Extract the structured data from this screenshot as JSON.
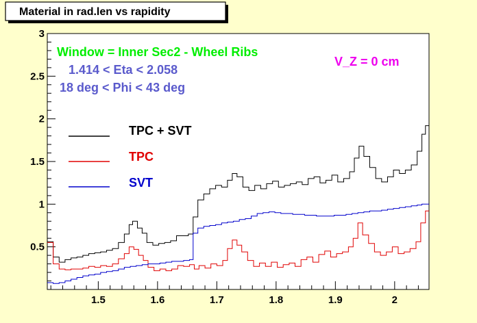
{
  "colors": {
    "canvas_bg": "#ffffcc",
    "frame": "#000000",
    "total": "#000000",
    "tpc": "#e00000",
    "svt": "#0000cc",
    "window_text": "#00ee00",
    "eta_phi_text": "#5a5acc",
    "vz_text": "#ee00ee"
  },
  "annotations": {
    "window": "Window = Inner Sec2 - Wheel Ribs",
    "eta": "1.414 < Eta < 2.058",
    "phi": "18 deg < Phi < 43 deg",
    "vz": "V_Z = 0 cm"
  },
  "chart_data": {
    "type": "line",
    "title": "Material in rad.len vs rapidity",
    "xlabel": "",
    "ylabel": "",
    "xlim": [
      1.414,
      2.058
    ],
    "ylim": [
      0,
      3
    ],
    "grid": false,
    "legend_position": "left",
    "x_ticks": [
      {
        "v": 1.5,
        "label": "1.5"
      },
      {
        "v": 1.6,
        "label": "1.6"
      },
      {
        "v": 1.7,
        "label": "1.7"
      },
      {
        "v": 1.8,
        "label": "1.8"
      },
      {
        "v": 1.9,
        "label": "1.9"
      },
      {
        "v": 2.0,
        "label": "2"
      }
    ],
    "y_ticks": [
      {
        "v": 0.5,
        "label": "0.5"
      },
      {
        "v": 1.0,
        "label": "1"
      },
      {
        "v": 1.5,
        "label": "1.5"
      },
      {
        "v": 2.0,
        "label": "2"
      },
      {
        "v": 2.5,
        "label": "2.5"
      },
      {
        "v": 3.0,
        "label": "3"
      }
    ],
    "draw_style": "histogram-steps",
    "series": [
      {
        "name": "TPC + SVT",
        "color_key": "total",
        "points": [
          [
            1.414,
            0.56
          ],
          [
            1.424,
            0.38
          ],
          [
            1.434,
            0.32
          ],
          [
            1.444,
            0.35
          ],
          [
            1.454,
            0.37
          ],
          [
            1.464,
            0.38
          ],
          [
            1.474,
            0.4
          ],
          [
            1.484,
            0.42
          ],
          [
            1.494,
            0.43
          ],
          [
            1.504,
            0.44
          ],
          [
            1.514,
            0.46
          ],
          [
            1.524,
            0.48
          ],
          [
            1.534,
            0.55
          ],
          [
            1.544,
            0.65
          ],
          [
            1.552,
            0.76
          ],
          [
            1.558,
            0.8
          ],
          [
            1.566,
            0.72
          ],
          [
            1.574,
            0.66
          ],
          [
            1.582,
            0.55
          ],
          [
            1.592,
            0.52
          ],
          [
            1.602,
            0.54
          ],
          [
            1.612,
            0.55
          ],
          [
            1.622,
            0.57
          ],
          [
            1.632,
            0.63
          ],
          [
            1.642,
            0.63
          ],
          [
            1.652,
            0.65
          ],
          [
            1.66,
            0.85
          ],
          [
            1.668,
            1.05
          ],
          [
            1.678,
            1.12
          ],
          [
            1.688,
            1.18
          ],
          [
            1.698,
            1.22
          ],
          [
            1.708,
            1.2
          ],
          [
            1.718,
            1.28
          ],
          [
            1.726,
            1.36
          ],
          [
            1.734,
            1.32
          ],
          [
            1.744,
            1.2
          ],
          [
            1.754,
            1.16
          ],
          [
            1.764,
            1.22
          ],
          [
            1.774,
            1.18
          ],
          [
            1.784,
            1.24
          ],
          [
            1.794,
            1.27
          ],
          [
            1.804,
            1.2
          ],
          [
            1.814,
            1.22
          ],
          [
            1.824,
            1.24
          ],
          [
            1.834,
            1.26
          ],
          [
            1.844,
            1.23
          ],
          [
            1.854,
            1.3
          ],
          [
            1.864,
            1.32
          ],
          [
            1.874,
            1.25
          ],
          [
            1.884,
            1.28
          ],
          [
            1.894,
            1.34
          ],
          [
            1.904,
            1.26
          ],
          [
            1.914,
            1.3
          ],
          [
            1.924,
            1.38
          ],
          [
            1.932,
            1.54
          ],
          [
            1.94,
            1.68
          ],
          [
            1.948,
            1.56
          ],
          [
            1.958,
            1.43
          ],
          [
            1.968,
            1.3
          ],
          [
            1.978,
            1.26
          ],
          [
            1.988,
            1.32
          ],
          [
            1.998,
            1.4
          ],
          [
            2.008,
            1.36
          ],
          [
            2.018,
            1.4
          ],
          [
            2.028,
            1.46
          ],
          [
            2.038,
            1.62
          ],
          [
            2.046,
            1.82
          ],
          [
            2.052,
            1.92
          ]
        ]
      },
      {
        "name": "TPC",
        "color_key": "tpc",
        "points": [
          [
            1.414,
            0.55
          ],
          [
            1.424,
            0.3
          ],
          [
            1.434,
            0.24
          ],
          [
            1.444,
            0.23
          ],
          [
            1.454,
            0.24
          ],
          [
            1.464,
            0.24
          ],
          [
            1.474,
            0.25
          ],
          [
            1.484,
            0.27
          ],
          [
            1.494,
            0.26
          ],
          [
            1.504,
            0.28
          ],
          [
            1.514,
            0.27
          ],
          [
            1.524,
            0.3
          ],
          [
            1.534,
            0.36
          ],
          [
            1.544,
            0.42
          ],
          [
            1.552,
            0.5
          ],
          [
            1.56,
            0.47
          ],
          [
            1.568,
            0.4
          ],
          [
            1.576,
            0.34
          ],
          [
            1.584,
            0.26
          ],
          [
            1.594,
            0.22
          ],
          [
            1.604,
            0.24
          ],
          [
            1.614,
            0.22
          ],
          [
            1.624,
            0.24
          ],
          [
            1.634,
            0.28
          ],
          [
            1.644,
            0.27
          ],
          [
            1.654,
            0.29
          ],
          [
            1.662,
            0.24
          ],
          [
            1.67,
            0.28
          ],
          [
            1.68,
            0.25
          ],
          [
            1.69,
            0.3
          ],
          [
            1.7,
            0.28
          ],
          [
            1.71,
            0.34
          ],
          [
            1.718,
            0.48
          ],
          [
            1.726,
            0.58
          ],
          [
            1.734,
            0.52
          ],
          [
            1.742,
            0.44
          ],
          [
            1.752,
            0.34
          ],
          [
            1.762,
            0.27
          ],
          [
            1.772,
            0.31
          ],
          [
            1.782,
            0.27
          ],
          [
            1.792,
            0.32
          ],
          [
            1.802,
            0.26
          ],
          [
            1.812,
            0.29
          ],
          [
            1.822,
            0.31
          ],
          [
            1.832,
            0.27
          ],
          [
            1.842,
            0.35
          ],
          [
            1.852,
            0.38
          ],
          [
            1.862,
            0.32
          ],
          [
            1.872,
            0.41
          ],
          [
            1.882,
            0.45
          ],
          [
            1.892,
            0.38
          ],
          [
            1.902,
            0.42
          ],
          [
            1.912,
            0.44
          ],
          [
            1.922,
            0.5
          ],
          [
            1.93,
            0.6
          ],
          [
            1.938,
            0.78
          ],
          [
            1.946,
            0.64
          ],
          [
            1.956,
            0.54
          ],
          [
            1.966,
            0.44
          ],
          [
            1.976,
            0.4
          ],
          [
            1.986,
            0.44
          ],
          [
            1.996,
            0.5
          ],
          [
            2.006,
            0.42
          ],
          [
            2.016,
            0.44
          ],
          [
            2.026,
            0.48
          ],
          [
            2.036,
            0.56
          ],
          [
            2.044,
            0.78
          ],
          [
            2.052,
            0.92
          ]
        ]
      },
      {
        "name": "SVT",
        "color_key": "svt",
        "points": [
          [
            1.414,
            0.08
          ],
          [
            1.424,
            0.07
          ],
          [
            1.434,
            0.08
          ],
          [
            1.444,
            0.1
          ],
          [
            1.454,
            0.12
          ],
          [
            1.464,
            0.14
          ],
          [
            1.474,
            0.16
          ],
          [
            1.484,
            0.17
          ],
          [
            1.494,
            0.18
          ],
          [
            1.504,
            0.2
          ],
          [
            1.514,
            0.21
          ],
          [
            1.524,
            0.22
          ],
          [
            1.534,
            0.24
          ],
          [
            1.544,
            0.26
          ],
          [
            1.554,
            0.27
          ],
          [
            1.564,
            0.28
          ],
          [
            1.574,
            0.29
          ],
          [
            1.584,
            0.3
          ],
          [
            1.594,
            0.3
          ],
          [
            1.604,
            0.31
          ],
          [
            1.614,
            0.32
          ],
          [
            1.624,
            0.33
          ],
          [
            1.634,
            0.33
          ],
          [
            1.644,
            0.34
          ],
          [
            1.654,
            0.35
          ],
          [
            1.66,
            0.66
          ],
          [
            1.668,
            0.72
          ],
          [
            1.678,
            0.74
          ],
          [
            1.688,
            0.75
          ],
          [
            1.698,
            0.76
          ],
          [
            1.708,
            0.78
          ],
          [
            1.718,
            0.79
          ],
          [
            1.728,
            0.8
          ],
          [
            1.738,
            0.82
          ],
          [
            1.748,
            0.83
          ],
          [
            1.758,
            0.86
          ],
          [
            1.768,
            0.89
          ],
          [
            1.778,
            0.9
          ],
          [
            1.788,
            0.91
          ],
          [
            1.798,
            0.9
          ],
          [
            1.808,
            0.89
          ],
          [
            1.818,
            0.89
          ],
          [
            1.828,
            0.88
          ],
          [
            1.838,
            0.88
          ],
          [
            1.848,
            0.87
          ],
          [
            1.858,
            0.87
          ],
          [
            1.868,
            0.86
          ],
          [
            1.878,
            0.86
          ],
          [
            1.888,
            0.86
          ],
          [
            1.898,
            0.87
          ],
          [
            1.908,
            0.87
          ],
          [
            1.918,
            0.88
          ],
          [
            1.928,
            0.89
          ],
          [
            1.938,
            0.9
          ],
          [
            1.948,
            0.91
          ],
          [
            1.958,
            0.92
          ],
          [
            1.968,
            0.92
          ],
          [
            1.978,
            0.93
          ],
          [
            1.988,
            0.94
          ],
          [
            1.998,
            0.95
          ],
          [
            2.008,
            0.96
          ],
          [
            2.018,
            0.97
          ],
          [
            2.028,
            0.98
          ],
          [
            2.038,
            0.99
          ],
          [
            2.046,
            1.0
          ],
          [
            2.052,
            1.0
          ]
        ]
      }
    ]
  }
}
